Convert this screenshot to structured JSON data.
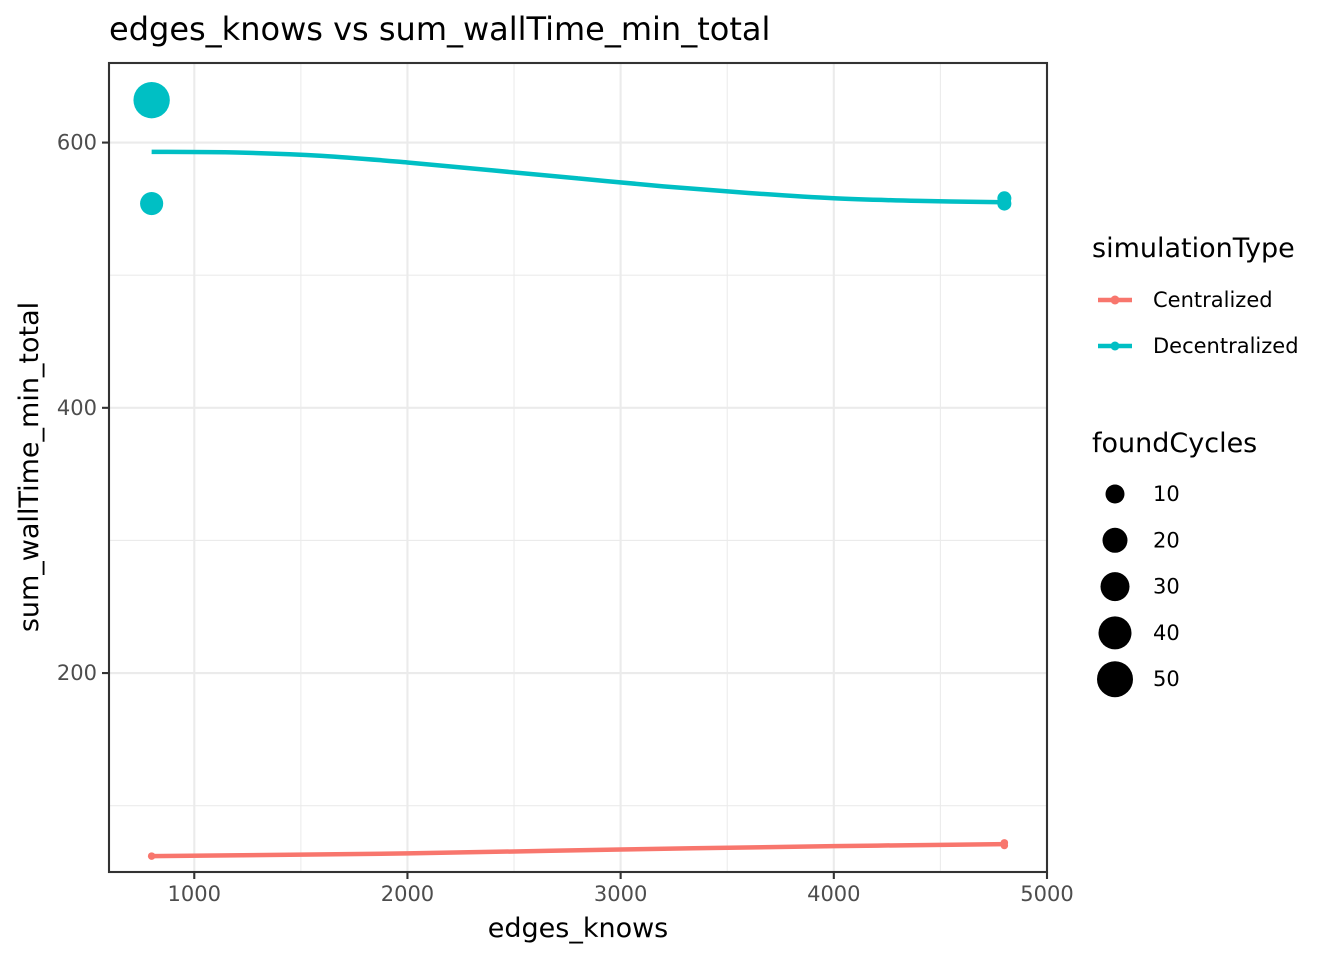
{
  "chart_data": {
    "type": "scatter",
    "title": "edges_knows  vs  sum_wallTime_min_total",
    "xlabel": "edges_knows",
    "ylabel": "sum_wallTime_min_total",
    "xlim": [
      600,
      5000
    ],
    "ylim": [
      50,
      660
    ],
    "x_ticks": [
      1000,
      2000,
      3000,
      4000,
      5000
    ],
    "y_ticks": [
      200,
      400,
      600
    ],
    "grid": true,
    "legend_position": "right",
    "color_legend": {
      "title": "simulationType",
      "entries": [
        {
          "label": "Centralized",
          "color": "#F8766D"
        },
        {
          "label": "Decentralized",
          "color": "#00BFC4"
        }
      ]
    },
    "size_legend": {
      "title": "foundCycles",
      "entries": [
        {
          "label": "10",
          "value": 10
        },
        {
          "label": "20",
          "value": 20
        },
        {
          "label": "30",
          "value": 30
        },
        {
          "label": "40",
          "value": 40
        },
        {
          "label": "50",
          "value": 50
        }
      ]
    },
    "series": [
      {
        "name": "Centralized",
        "color": "#F8766D",
        "points": [
          {
            "x": 800,
            "y": 62,
            "size": 1
          },
          {
            "x": 4800,
            "y": 70,
            "size": 1
          },
          {
            "x": 4800,
            "y": 72,
            "size": 1
          }
        ],
        "smooth": [
          {
            "x": 800,
            "y": 62
          },
          {
            "x": 2000,
            "y": 64
          },
          {
            "x": 3000,
            "y": 67
          },
          {
            "x": 4000,
            "y": 69.5
          },
          {
            "x": 4800,
            "y": 71
          }
        ]
      },
      {
        "name": "Decentralized",
        "color": "#00BFC4",
        "points": [
          {
            "x": 800,
            "y": 632,
            "size": 55
          },
          {
            "x": 800,
            "y": 554,
            "size": 20
          },
          {
            "x": 4800,
            "y": 554,
            "size": 6
          },
          {
            "x": 4800,
            "y": 558,
            "size": 6
          }
        ],
        "smooth": [
          {
            "x": 800,
            "y": 593
          },
          {
            "x": 1200,
            "y": 592.5
          },
          {
            "x": 1600,
            "y": 590
          },
          {
            "x": 2000,
            "y": 585
          },
          {
            "x": 2400,
            "y": 579
          },
          {
            "x": 2800,
            "y": 573
          },
          {
            "x": 3200,
            "y": 567
          },
          {
            "x": 3600,
            "y": 562
          },
          {
            "x": 4000,
            "y": 558
          },
          {
            "x": 4400,
            "y": 556
          },
          {
            "x": 4800,
            "y": 555
          }
        ]
      }
    ]
  }
}
